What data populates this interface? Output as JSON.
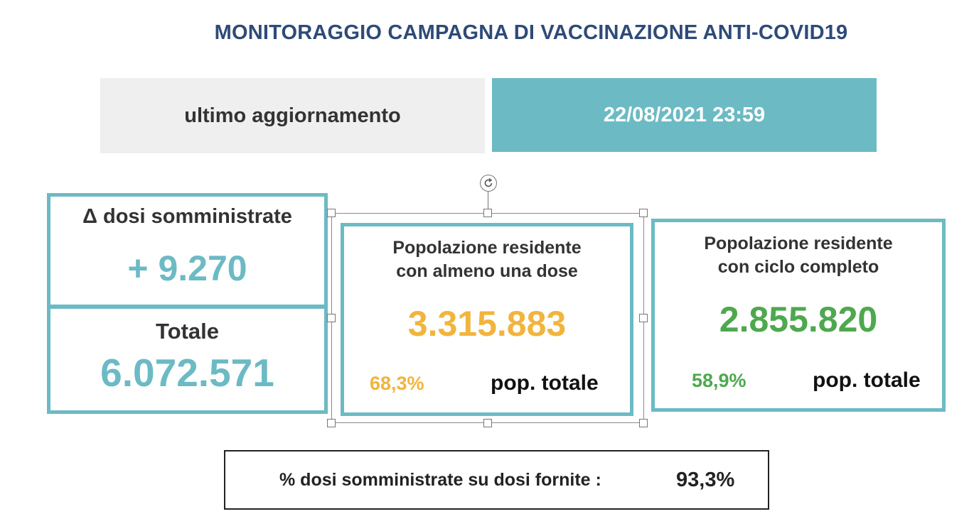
{
  "title": "MONITORAGGIO CAMPAGNA DI VACCINAZIONE ANTI-COVID19",
  "update": {
    "label": "ultimo aggiornamento",
    "value": "22/08/2021 23:59"
  },
  "delta_doses": {
    "label": "Δ dosi somministrate",
    "value": "+ 9.270"
  },
  "total_doses": {
    "label": "Totale",
    "value": "6.072.571"
  },
  "one_dose": {
    "label_line1": "Popolazione residente",
    "label_line2": "con almeno una dose",
    "value": "3.315.883",
    "percent": "68,3%",
    "percent_label": "pop. totale"
  },
  "full_cycle": {
    "label_line1": "Popolazione residente",
    "label_line2": "con ciclo completo",
    "value": "2.855.820",
    "percent": "58,9%",
    "percent_label": "pop. totale"
  },
  "ratio": {
    "label": "% dosi somministrate su dosi fornite :",
    "value": "93,3%"
  },
  "colors": {
    "teal": "#6cbac4",
    "title_blue": "#2e4a78",
    "orange": "#f2b43c",
    "green": "#4ea84f"
  }
}
